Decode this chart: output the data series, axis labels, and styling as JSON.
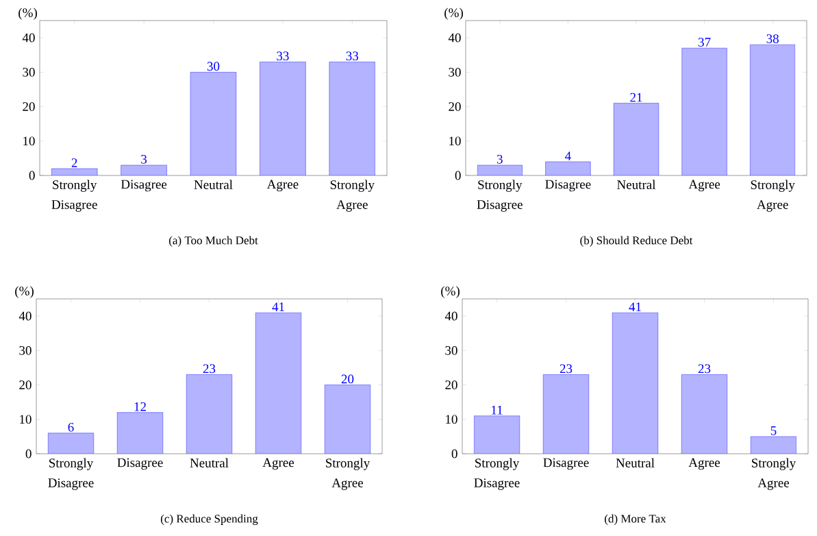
{
  "chart_data": [
    {
      "type": "bar",
      "title": "(a) Too Much Debt",
      "ylabel": "(%)",
      "categories": [
        "Strongly Disagree",
        "Disagree",
        "Neutral",
        "Agree",
        "Strongly Agree"
      ],
      "values": [
        2,
        3,
        30,
        33,
        33
      ],
      "color": "#b3b3ff",
      "ylim": [
        0,
        45
      ],
      "yticks": [
        0,
        10,
        20,
        30,
        40
      ],
      "data_labels": true
    },
    {
      "type": "bar",
      "title": "(b) Should Reduce Debt",
      "ylabel": "(%)",
      "categories": [
        "Strongly Disagree",
        "Disagree",
        "Neutral",
        "Agree",
        "Strongly Agree"
      ],
      "values": [
        3,
        4,
        21,
        37,
        38
      ],
      "color": "#b3b3ff",
      "ylim": [
        0,
        45
      ],
      "yticks": [
        0,
        10,
        20,
        30,
        40
      ],
      "data_labels": true
    },
    {
      "type": "bar",
      "title": "(c) Reduce Spending",
      "ylabel": "(%)",
      "categories": [
        "Strongly Disagree",
        "Disagree",
        "Neutral",
        "Agree",
        "Strongly Agree"
      ],
      "values": [
        6,
        12,
        23,
        41,
        20
      ],
      "color": "#b3b3ff",
      "ylim": [
        0,
        45
      ],
      "yticks": [
        0,
        10,
        20,
        30,
        40
      ],
      "data_labels": true
    },
    {
      "type": "bar",
      "title": "(d) More Tax",
      "ylabel": "(%)",
      "categories": [
        "Strongly Disagree",
        "Disagree",
        "Neutral",
        "Agree",
        "Strongly Agree"
      ],
      "values": [
        11,
        23,
        41,
        23,
        5
      ],
      "color": "#b3b3ff",
      "ylim": [
        0,
        45
      ],
      "yticks": [
        0,
        10,
        20,
        30,
        40
      ],
      "data_labels": true
    }
  ]
}
